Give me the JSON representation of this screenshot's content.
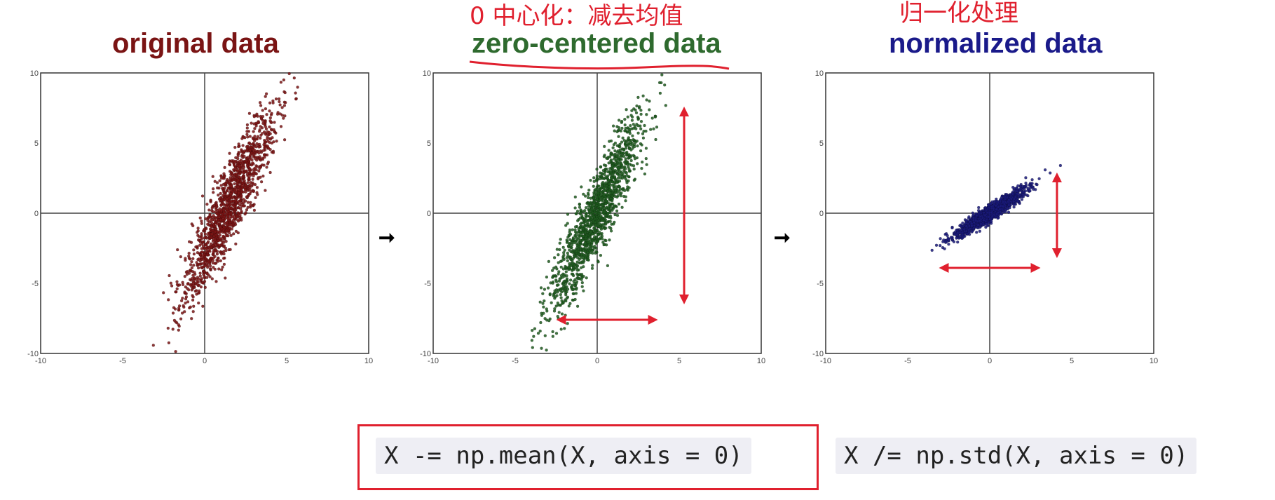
{
  "annotations": {
    "center_note": "0 中心化：减去均值",
    "normalize_note": "归一化处理"
  },
  "code": {
    "mean_line": "X -= np.mean(X, axis = 0)",
    "std_line": "X /= np.std(X, axis = 0)"
  },
  "colors": {
    "original": "#7a1414",
    "zero_centered": "#1f5a1f",
    "normalized": "#1a1a7a",
    "annotation_red": "#e0202e"
  },
  "chart_data": [
    {
      "type": "scatter",
      "title": "original data",
      "xlabel": "",
      "ylabel": "",
      "xlim": [
        -10,
        10
      ],
      "ylim": [
        -10,
        10
      ],
      "xticks": [
        -10,
        -5,
        0,
        5,
        10
      ],
      "yticks": [
        -10,
        -5,
        0,
        5,
        10
      ],
      "center": [
        1.5,
        0.6
      ],
      "spread_major": 3.8,
      "spread_minor": 0.55,
      "angle_deg": 69,
      "color": "#7a1414"
    },
    {
      "type": "scatter",
      "title": "zero-centered data",
      "xlabel": "",
      "ylabel": "",
      "xlim": [
        -10,
        10
      ],
      "ylim": [
        -10,
        10
      ],
      "xticks": [
        -10,
        -5,
        0,
        5,
        10
      ],
      "yticks": [
        -10,
        -5,
        0,
        5,
        10
      ],
      "center": [
        0,
        0
      ],
      "spread_major": 3.8,
      "spread_minor": 0.55,
      "angle_deg": 69,
      "color": "#1f5a1f"
    },
    {
      "type": "scatter",
      "title": "normalized data",
      "xlabel": "",
      "ylabel": "",
      "xlim": [
        -10,
        10
      ],
      "ylim": [
        -10,
        10
      ],
      "xticks": [
        -10,
        -5,
        0,
        5,
        10
      ],
      "yticks": [
        -10,
        -5,
        0,
        5,
        10
      ],
      "center": [
        0,
        0
      ],
      "spread_major": 1.35,
      "spread_minor": 0.22,
      "angle_deg": 38,
      "color": "#1a1a7a"
    }
  ]
}
